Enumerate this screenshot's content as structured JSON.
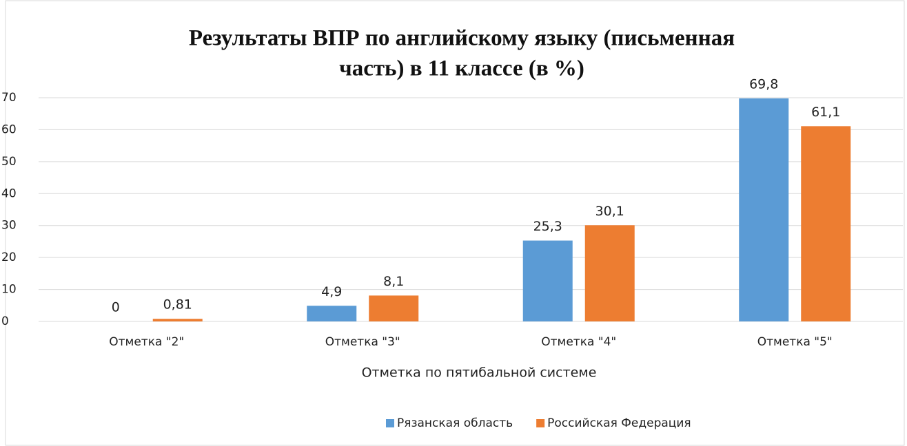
{
  "chart_data": {
    "type": "bar",
    "title": [
      "Результаты ВПР по английскому языку     (письменная",
      "часть) в 11 классе (в %)"
    ],
    "x_label": "Отметка по пятибальной системе",
    "categories": [
      "Отметка \"2\"",
      "Отметка \"3\"",
      "Отметка \"4\"",
      "Отметка \"5\""
    ],
    "series": [
      {
        "name": "Рязанская область",
        "color": "#5b9bd5",
        "values": [
          0,
          4.9,
          25.3,
          69.8
        ],
        "value_labels": [
          "0",
          "4,9",
          "25,3",
          "69,8"
        ]
      },
      {
        "name": "Российская Федерация",
        "color": "#ed7d31",
        "values": [
          0.81,
          8.1,
          30.1,
          61.1
        ],
        "value_labels": [
          "0,81",
          "8,1",
          "30,1",
          "61,1"
        ]
      }
    ],
    "ylim": [
      0,
      70
    ],
    "yticks": [
      0,
      10,
      20,
      30,
      40,
      50,
      60,
      70
    ],
    "grid": true,
    "legend": "bottom"
  }
}
